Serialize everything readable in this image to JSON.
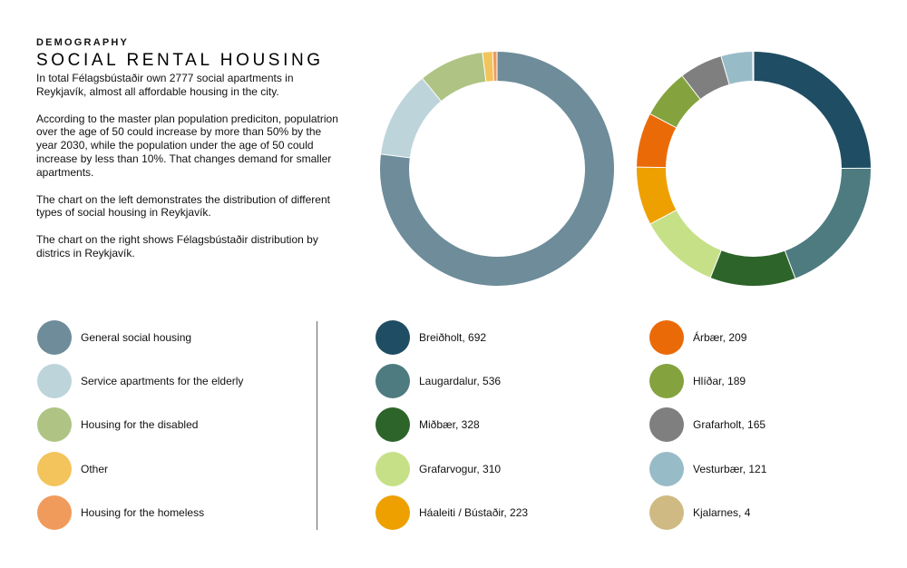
{
  "header": {
    "kicker": "DEMOGRAPHY",
    "title": "SOCIAL RENTAL HOUSING",
    "paragraphs": [
      "In total Félagsbústaðir own 2777 social apartments in Reykjavík, almost all affordable housing in the city.",
      "According to the master plan population prediciton, populatrion over the age of 50 could increase by more than 50% by the year 2030, while the population under the age of 50 could increase by less than 10%. That changes demand for smaller apartments.",
      "The chart on the left demonstrates the distribution of different types of social housing in Reykjavík.",
      "The chart on the right shows Félagsbústaðir distribution by districs in Reykjavík."
    ]
  },
  "chart_data": [
    {
      "type": "pie",
      "variant": "donut",
      "categories": [
        "General social housing",
        "Service apartments for the elderly",
        "Housing for the disabled",
        "Other",
        "Housing for the homeless"
      ],
      "values": [
        77,
        12,
        9,
        1.4,
        0.6
      ],
      "colors": [
        "#6e8c99",
        "#bdd4db",
        "#afc484",
        "#f3c45c",
        "#f09b5c"
      ]
    },
    {
      "type": "pie",
      "variant": "donut",
      "categories": [
        "Breiðholt",
        "Laugardalur",
        "Miðbær",
        "Grafarvogur",
        "Háaleiti / Bústaðir",
        "Árbær",
        "Hlíðar",
        "Grafarholt",
        "Vesturbær",
        "Kjalarnes"
      ],
      "values": [
        692,
        536,
        328,
        310,
        223,
        209,
        189,
        165,
        121,
        4
      ],
      "colors": [
        "#1f4d63",
        "#4d7b80",
        "#2d6429",
        "#c6e088",
        "#eda000",
        "#eb6a08",
        "#84a33e",
        "#7f7f7f",
        "#98bcc7",
        "#cfba83"
      ]
    }
  ],
  "legend_types": [
    {
      "label": "General social housing",
      "color": "#6e8c99"
    },
    {
      "label": "Service apartments for the elderly",
      "color": "#bdd4db"
    },
    {
      "label": "Housing for the disabled",
      "color": "#afc484"
    },
    {
      "label": "Other",
      "color": "#f3c45c"
    },
    {
      "label": "Housing for the homeless",
      "color": "#f09b5c"
    }
  ],
  "legend_districts": [
    {
      "label": "Breiðholt, 692",
      "color": "#1f4d63"
    },
    {
      "label": "Laugardalur, 536",
      "color": "#4d7b80"
    },
    {
      "label": "Miðbær, 328",
      "color": "#2d6429"
    },
    {
      "label": "Grafarvogur, 310",
      "color": "#c6e088"
    },
    {
      "label": "Háaleiti / Bústaðir, 223",
      "color": "#eda000"
    },
    {
      "label": "Árbær, 209",
      "color": "#eb6a08"
    },
    {
      "label": "Hlíðar, 189",
      "color": "#84a33e"
    },
    {
      "label": "Grafarholt, 165",
      "color": "#7f7f7f"
    },
    {
      "label": "Vesturbær, 121",
      "color": "#98bcc7"
    },
    {
      "label": "Kjalarnes, 4",
      "color": "#cfba83"
    }
  ]
}
